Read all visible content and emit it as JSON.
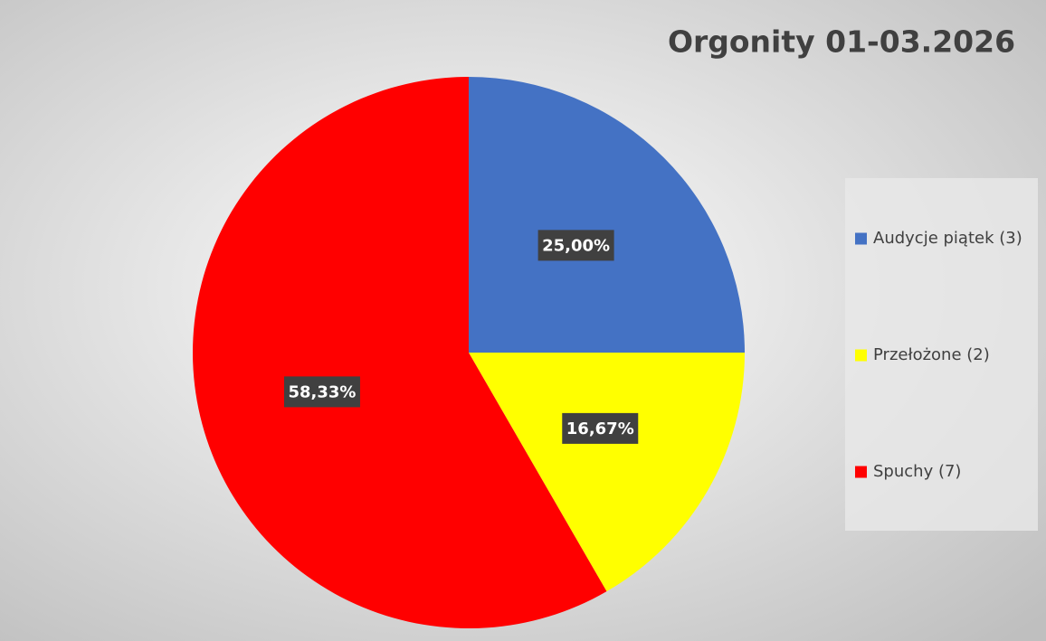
{
  "chart_data": {
    "type": "pie",
    "title": "Orgonity 01-03.2026",
    "categories": [
      "Audycje piątek (3)",
      "Przełożone (2)",
      "Spuchy (7)"
    ],
    "values": [
      25,
      16.67,
      58.33
    ],
    "value_labels": [
      "25,00%",
      "16,67%",
      "58,33%"
    ],
    "colors": [
      "#4472c4",
      "#ffff00",
      "#ff0000"
    ],
    "legend": "right"
  }
}
